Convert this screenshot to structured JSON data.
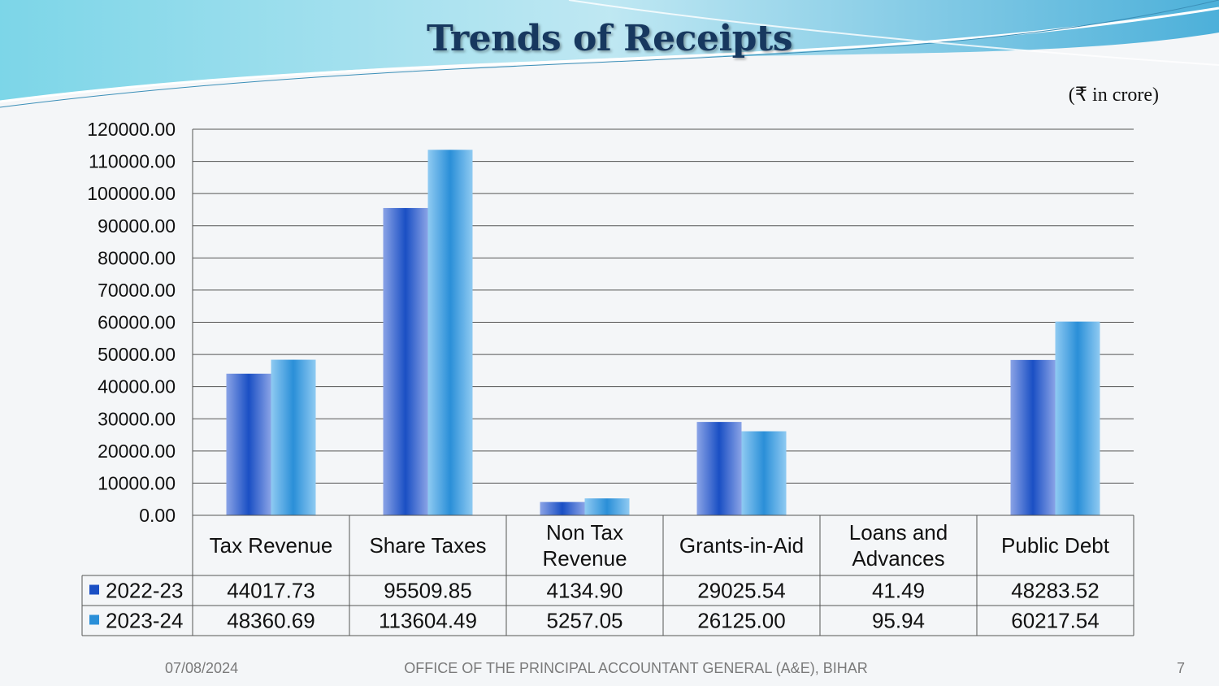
{
  "slide": {
    "title": "Trends of Receipts",
    "unit_note": "(₹ in crore)",
    "footer_date": "07/08/2024",
    "footer_office": "OFFICE OF THE PRINCIPAL ACCOUNTANT GENERAL (A&E), BIHAR",
    "page_number": "7"
  },
  "colors": {
    "series_2022_23": "#1a4fc4",
    "series_2023_24": "#2a8fd8",
    "gridline": "#555555"
  },
  "chart_data": {
    "type": "bar",
    "title": "Trends of Receipts",
    "categories": [
      [
        "Tax Revenue"
      ],
      [
        "Share Taxes"
      ],
      [
        "Non Tax",
        "Revenue"
      ],
      [
        "Grants-in-Aid"
      ],
      [
        "Loans and",
        "Advances"
      ],
      [
        "Public Debt"
      ]
    ],
    "series": [
      {
        "name": "2022-23",
        "values": [
          44017.73,
          95509.85,
          4134.9,
          29025.54,
          41.49,
          48283.52
        ],
        "labels": [
          "44017.73",
          "95509.85",
          "4134.90",
          "29025.54",
          "41.49",
          "48283.52"
        ]
      },
      {
        "name": "2023-24",
        "values": [
          48360.69,
          113604.49,
          5257.05,
          26125.0,
          95.94,
          60217.54
        ],
        "labels": [
          "48360.69",
          "113604.49",
          "5257.05",
          "26125.00",
          "95.94",
          "60217.54"
        ]
      }
    ],
    "y_ticks": [
      "0.00",
      "10000.00",
      "20000.00",
      "30000.00",
      "40000.00",
      "50000.00",
      "60000.00",
      "70000.00",
      "80000.00",
      "90000.00",
      "100000.00",
      "110000.00",
      "120000.00"
    ],
    "ylim": [
      0,
      120000
    ],
    "grid": true,
    "legend": "data-table"
  }
}
